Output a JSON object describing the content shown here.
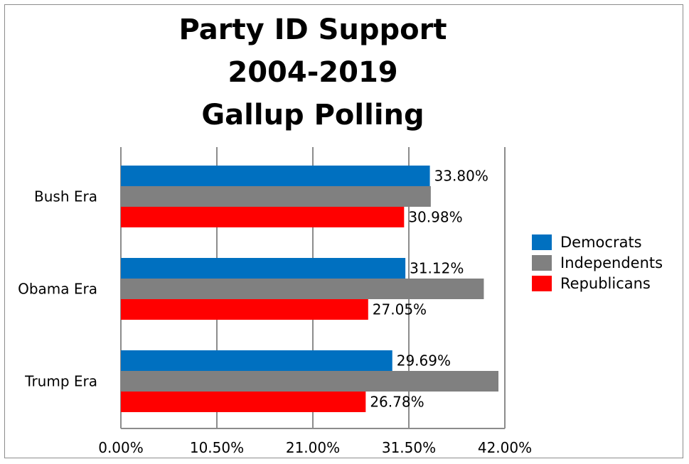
{
  "chart_data": {
    "type": "bar",
    "orientation": "horizontal",
    "title_lines": [
      "Party ID Support",
      "2004-2019",
      "Gallup Polling"
    ],
    "categories": [
      "Bush Era",
      "Obama Era",
      "Trump Era"
    ],
    "series": [
      {
        "name": "Democrats",
        "color": "#0070c0",
        "values": [
          33.8,
          31.12,
          29.69
        ],
        "labels": [
          "33.80%",
          "31.12%",
          "29.69%"
        ]
      },
      {
        "name": "Independents",
        "color": "#808080",
        "values": [
          33.9,
          39.7,
          41.3
        ],
        "labels": [
          "",
          "",
          ""
        ]
      },
      {
        "name": "Republicans",
        "color": "#ff0000",
        "values": [
          30.98,
          27.05,
          26.78
        ],
        "labels": [
          "30.98%",
          "27.05%",
          "26.78%"
        ]
      }
    ],
    "xlim": [
      0,
      42
    ],
    "xticks": [
      0,
      10.5,
      21,
      31.5,
      42
    ],
    "xtick_labels": [
      "0.00%",
      "10.50%",
      "21.00%",
      "31.50%",
      "42.00%"
    ],
    "grid": true,
    "legend_position": "right"
  }
}
